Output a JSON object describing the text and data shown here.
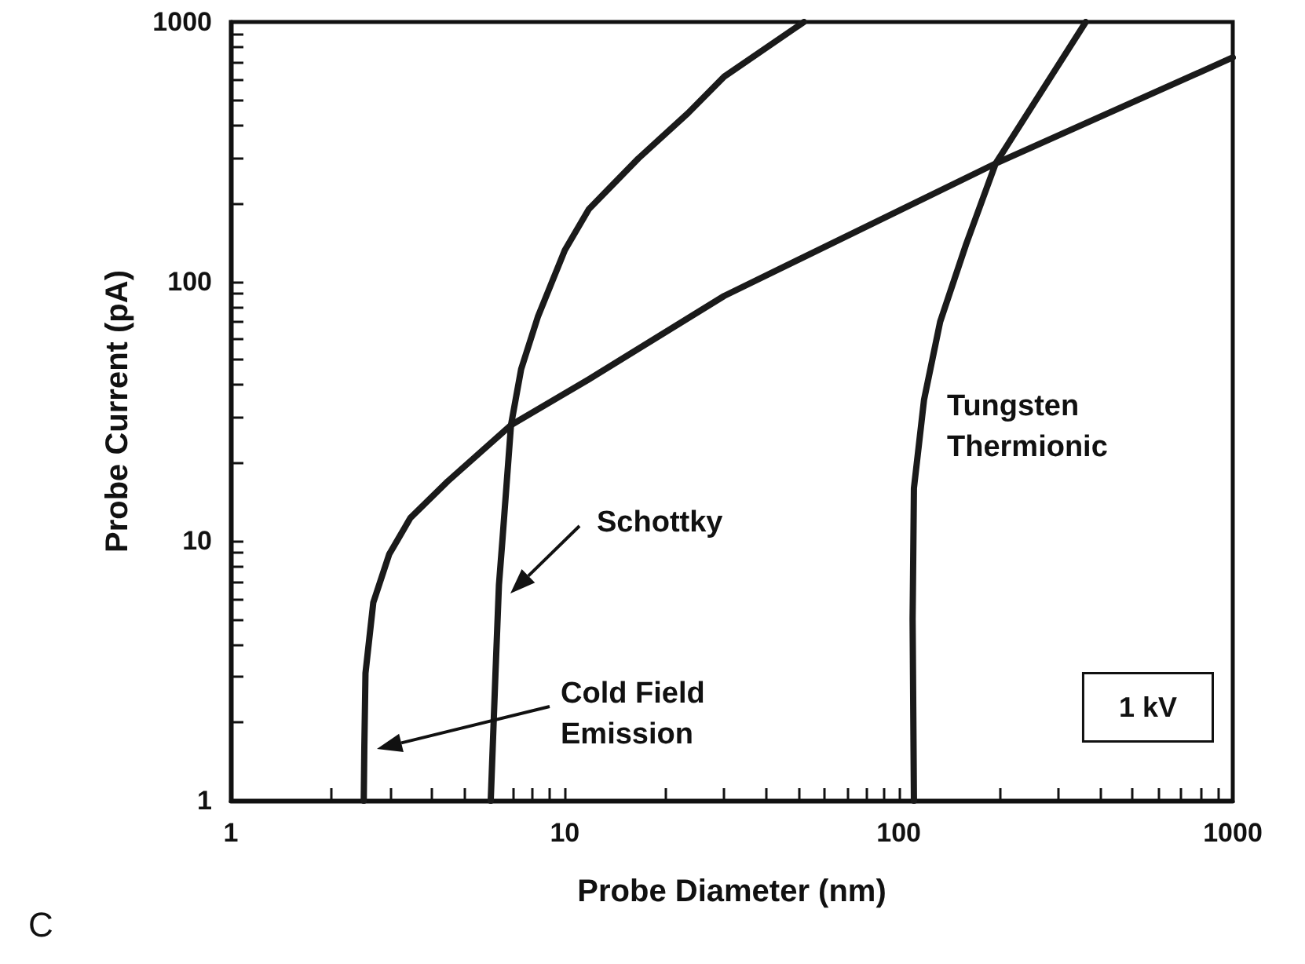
{
  "chart_data": {
    "type": "line",
    "xlabel": "Probe Diameter (nm)",
    "ylabel": "Probe Current (pA)",
    "log": "xy",
    "grid": false,
    "marker": "none",
    "xlim": [
      1,
      1000
    ],
    "ylim": [
      1,
      1000
    ],
    "xticks": [
      1,
      {
        "value": 2,
        "label": null
      },
      {
        "value": 3,
        "label": null
      },
      {
        "value": 4,
        "label": null
      },
      {
        "value": 5,
        "label": null
      },
      {
        "value": 6,
        "label": null
      },
      {
        "value": 7,
        "label": null
      },
      {
        "value": 8,
        "label": null
      },
      {
        "value": 9,
        "label": null
      },
      10,
      {
        "value": 20,
        "label": null
      },
      {
        "value": 30,
        "label": null
      },
      {
        "value": 40,
        "label": null
      },
      {
        "value": 50,
        "label": null
      },
      {
        "value": 60,
        "label": null
      },
      {
        "value": 70,
        "label": null
      },
      {
        "value": 80,
        "label": null
      },
      {
        "value": 90,
        "label": null
      },
      100,
      {
        "value": 200,
        "label": null
      },
      {
        "value": 300,
        "label": null
      },
      {
        "value": 400,
        "label": null
      },
      {
        "value": 500,
        "label": null
      },
      {
        "value": 600,
        "label": null
      },
      {
        "value": 700,
        "label": null
      },
      {
        "value": 800,
        "label": null
      },
      {
        "value": 900,
        "label": null
      },
      1000
    ],
    "yticks": [
      1,
      {
        "value": 2,
        "label": null
      },
      {
        "value": 3,
        "label": null
      },
      {
        "value": 4,
        "label": null
      },
      {
        "value": 5,
        "label": null
      },
      {
        "value": 6,
        "label": null
      },
      {
        "value": 7,
        "label": null
      },
      {
        "value": 8,
        "label": null
      },
      {
        "value": 9,
        "label": null
      },
      10,
      {
        "value": 20,
        "label": null
      },
      {
        "value": 30,
        "label": null
      },
      {
        "value": 40,
        "label": null
      },
      {
        "value": 50,
        "label": null
      },
      {
        "value": 60,
        "label": null
      },
      {
        "value": 70,
        "label": null
      },
      {
        "value": 80,
        "label": null
      },
      {
        "value": 90,
        "label": null
      },
      100,
      {
        "value": 200,
        "label": null
      },
      {
        "value": 300,
        "label": null
      },
      {
        "value": 400,
        "label": null
      },
      {
        "value": 500,
        "label": null
      },
      {
        "value": 600,
        "label": null
      },
      {
        "value": 700,
        "label": null
      },
      {
        "value": 800,
        "label": null
      },
      {
        "value": 900,
        "label": null
      },
      1000
    ],
    "series": [
      {
        "color": "#1a1a1a",
        "x": [
          2.5,
          2.51,
          2.53,
          2.67,
          2.98,
          3.45,
          4.46,
          6.9,
          11.8,
          30,
          195,
          1000
        ],
        "values": [
          1,
          1.6,
          3.1,
          5.8,
          8.9,
          12.3,
          17,
          28,
          42,
          88,
          285,
          730
        ]
      },
      {
        "color": "#1a1a1a",
        "x": [
          6.0,
          6.2,
          6.35,
          6.5,
          6.9,
          7.4,
          8.3,
          10,
          11.8,
          16.6,
          23.4,
          30,
          52
        ],
        "values": [
          1,
          3.1,
          6.8,
          10,
          28,
          46,
          73,
          132,
          190,
          298,
          446,
          616,
          1000
        ]
      },
      {
        "color": "#1a1a1a",
        "x": [
          111,
          110,
          111,
          119,
          133,
          159,
          195,
          255,
          363
        ],
        "values": [
          1,
          5,
          16,
          35,
          70,
          139,
          285,
          490,
          1000
        ]
      }
    ],
    "annotations": [
      "Cold Field\nEmission",
      "Schottky",
      "Tungsten\nThermionic",
      "1 kV",
      "C"
    ]
  }
}
